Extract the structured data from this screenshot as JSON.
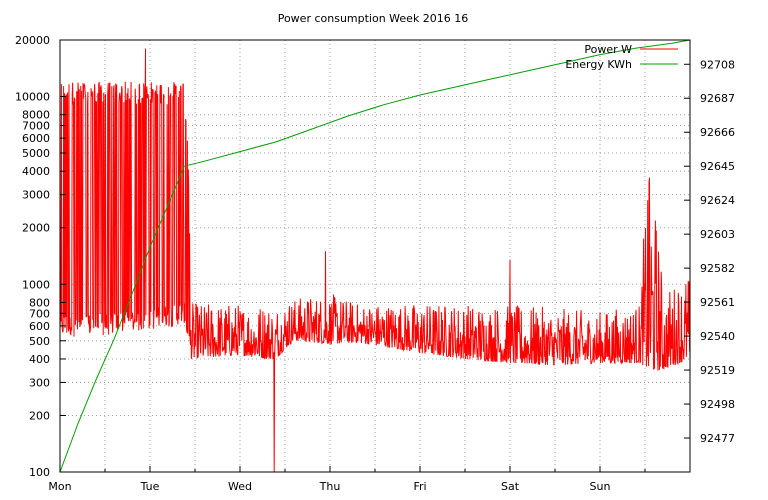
{
  "chart_data": {
    "type": "line",
    "title": "Power consumption Week 2016 16",
    "x_tick_labels": [
      "Mon",
      "Tue",
      "Wed",
      "Thu",
      "Fri",
      "Sat",
      "Sun"
    ],
    "xlim_days": [
      0,
      7
    ],
    "grid": true,
    "legend_position": "top-right",
    "y_left": {
      "scale": "log",
      "ylim": [
        100,
        20000
      ],
      "tick_labels": [
        "100",
        "200",
        "300",
        "400",
        "500",
        "600",
        "700",
        "800",
        "1000",
        "2000",
        "3000",
        "4000",
        "5000",
        "6000",
        "7000",
        "8000",
        "10000",
        "20000"
      ],
      "ticks": [
        100,
        200,
        300,
        400,
        500,
        600,
        700,
        800,
        1000,
        2000,
        3000,
        4000,
        5000,
        6000,
        7000,
        8000,
        10000,
        20000
      ]
    },
    "y_right": {
      "scale": "linear",
      "ylim": [
        92456,
        92723
      ],
      "tick_labels": [
        "92477",
        "92498",
        "92519",
        "92540",
        "92561",
        "92582",
        "92603",
        "92624",
        "92645",
        "92666",
        "92687",
        "92708"
      ],
      "ticks": [
        92477,
        92498,
        92519,
        92540,
        92561,
        92582,
        92603,
        92624,
        92645,
        92666,
        92687,
        92708
      ]
    },
    "series": [
      {
        "name": "Power W",
        "axis": "left",
        "color": "#ff0000",
        "profile_days": [
          0,
          0.5,
          0.8,
          1.0,
          1.2,
          1.38,
          1.45,
          2.0,
          2.3,
          2.4,
          2.6,
          3.0,
          3.3,
          4.0,
          4.5,
          5.0,
          5.5,
          6.0,
          6.45,
          6.55,
          6.7,
          7.0
        ],
        "profile_low": [
          550,
          560,
          580,
          600,
          620,
          650,
          400,
          420,
          400,
          400,
          500,
          480,
          490,
          430,
          400,
          380,
          370,
          380,
          380,
          340,
          350,
          400
        ],
        "profile_high": [
          12000,
          12000,
          12000,
          12000,
          12000,
          12000,
          800,
          800,
          800,
          800,
          850,
          900,
          800,
          800,
          800,
          780,
          750,
          720,
          800,
          3700,
          900,
          1200
        ],
        "spikes": [
          {
            "day": 0.95,
            "value": 18000
          },
          {
            "day": 2.38,
            "value": 100
          },
          {
            "day": 2.95,
            "value": 1500
          },
          {
            "day": 5.0,
            "value": 1350
          },
          {
            "day": 6.55,
            "value": 3700
          },
          {
            "day": 6.53,
            "value": 2800
          }
        ]
      },
      {
        "name": "Energy KWh",
        "axis": "right",
        "color": "#00a000",
        "x": [
          0,
          0.2,
          0.4,
          0.6,
          0.8,
          1.0,
          1.2,
          1.38,
          1.6,
          2.0,
          2.4,
          2.8,
          3.2,
          3.6,
          4.0,
          4.4,
          4.8,
          5.2,
          5.6,
          6.0,
          6.4,
          6.8,
          7.0
        ],
        "y": [
          92456,
          92486,
          92513,
          92538,
          92566,
          92595,
          92621,
          92645,
          92648,
          92654,
          92660,
          92668,
          92676,
          92683,
          92689,
          92694,
          92699,
          92704,
          92709,
          92714,
          92718,
          92721,
          92723
        ]
      }
    ]
  }
}
